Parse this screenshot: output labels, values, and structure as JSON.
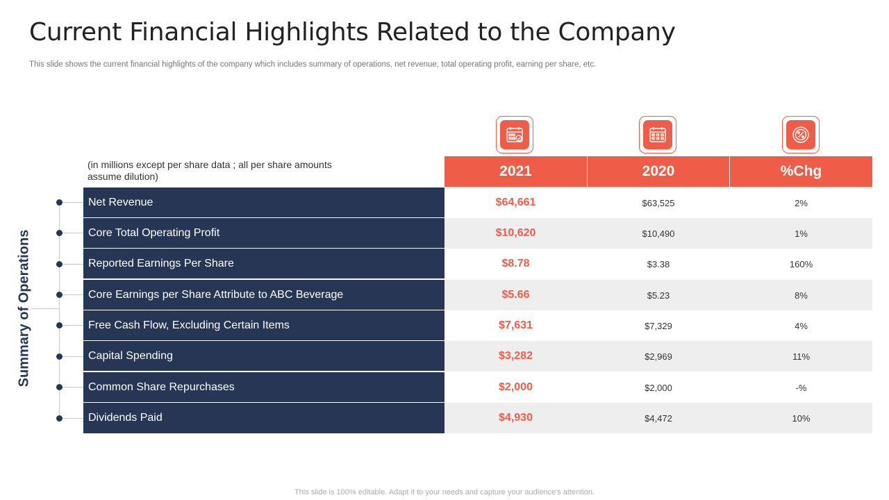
{
  "title": "Current Financial Highlights Related to the Company",
  "subtitle": "This slide shows the current financial highlights of the company which includes summary of operations,  net revenue,  total operating profit,  earning per share, etc.",
  "note": "(in millions except per share data ; all per share amounts assume dilution)",
  "side_label": "Summary of Operations",
  "headers": [
    "2021",
    "2020",
    "%Chg"
  ],
  "icons": [
    "calendar-check-icon",
    "calendar-icon",
    "percent-icon"
  ],
  "colors": {
    "accent": "#ef5d48",
    "navy": "#263654",
    "row_alt": "#eeeeee"
  },
  "rows": [
    {
      "label": "Net Revenue",
      "v2021": "$64,661",
      "v2020": "$63,525",
      "chg": "2%"
    },
    {
      "label": "Core Total Operating Profit",
      "v2021": "$10,620",
      "v2020": "$10,490",
      "chg": "1%"
    },
    {
      "label": "Reported Earnings Per Share",
      "v2021": "$8.78",
      "v2020": "$3.38",
      "chg": "160%"
    },
    {
      "label": "Core Earnings per Share Attribute to ABC Beverage",
      "v2021": "$5.66",
      "v2020": "$5.23",
      "chg": "8%"
    },
    {
      "label": "Free Cash Flow, Excluding Certain Items",
      "v2021": "$7,631",
      "v2020": "$7,329",
      "chg": "4%"
    },
    {
      "label": "Capital Spending",
      "v2021": "$3,282",
      "v2020": "$2,969",
      "chg": "11%"
    },
    {
      "label": "Common Share Repurchases",
      "v2021": "$2,000",
      "v2020": "$2,000",
      "chg": "-%"
    },
    {
      "label": "Dividends Paid",
      "v2021": "$4,930",
      "v2020": "$4,472",
      "chg": "10%"
    }
  ],
  "footer": "This slide is 100% editable. Adapt it to your needs and capture your audience's attention."
}
